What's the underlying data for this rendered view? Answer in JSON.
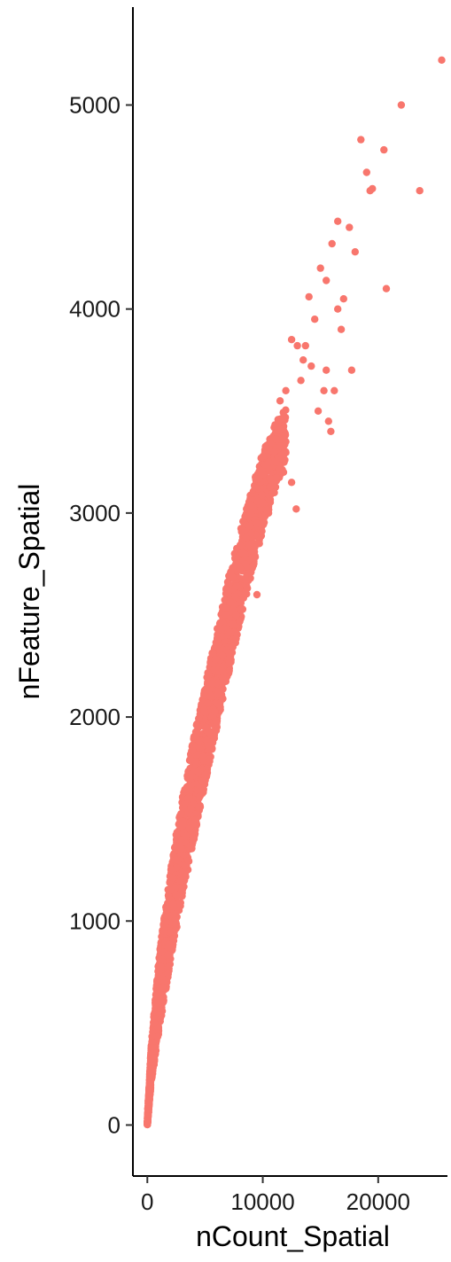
{
  "chart_data": {
    "type": "scatter",
    "title": "",
    "xlabel": "nCount_Spatial",
    "ylabel": "nFeature_Spatial",
    "xlim": [
      -1250,
      26000
    ],
    "ylim": [
      -250,
      5480
    ],
    "x_ticks": [
      0,
      10000,
      20000
    ],
    "x_tick_labels": [
      "0",
      "10000",
      "20000"
    ],
    "y_ticks": [
      0,
      1000,
      2000,
      3000,
      4000,
      5000
    ],
    "y_tick_labels": [
      "0",
      "1000",
      "2000",
      "3000",
      "4000",
      "5000"
    ],
    "grid": false,
    "legend": "none",
    "point_color": "#F8766D",
    "series": [
      {
        "x": [
          25500,
          22000,
          20500,
          18500,
          19500,
          19300,
          19000,
          23600,
          20700,
          16500,
          17500,
          18000,
          16000,
          16500,
          15500,
          17000,
          14000,
          15000,
          14500,
          16800,
          15500,
          17700,
          13500,
          13000,
          16200,
          14200,
          15300,
          13700,
          12500,
          14800,
          15700,
          12000,
          13300,
          11500,
          15900,
          12000,
          11000,
          10500,
          11800,
          12500,
          11000,
          10000,
          10500,
          9500,
          12900,
          9000,
          8500,
          9500,
          7700,
          6500,
          5500,
          4500,
          3500,
          2500,
          2000,
          1500,
          1000,
          800,
          600,
          400,
          250,
          150,
          80,
          40,
          20,
          10
        ],
        "y": [
          5220,
          5000,
          4780,
          4830,
          4590,
          4580,
          4670,
          4580,
          4100,
          4430,
          4400,
          4280,
          4320,
          4000,
          4140,
          4050,
          4060,
          4200,
          3950,
          3900,
          3700,
          3700,
          3750,
          3820,
          3600,
          3720,
          3600,
          3820,
          3850,
          3500,
          3450,
          3600,
          3650,
          3550,
          3400,
          3350,
          3300,
          3250,
          3200,
          3150,
          3100,
          3050,
          3000,
          2950,
          3020,
          2900,
          2750,
          2600,
          2500,
          2300,
          2100,
          1850,
          1600,
          1300,
          1150,
          950,
          750,
          600,
          500,
          380,
          250,
          180,
          120,
          80,
          40,
          20
        ]
      }
    ],
    "density_band": {
      "x": [
        0,
        300,
        1000,
        2000,
        3000,
        4000,
        5000,
        6000,
        7000,
        8000,
        9000,
        10000,
        11000,
        12000
      ],
      "y_low": [
        0,
        150,
        380,
        700,
        1000,
        1280,
        1570,
        1840,
        2100,
        2350,
        2600,
        2830,
        3040,
        3200
      ],
      "y_high": [
        10,
        400,
        900,
        1350,
        1700,
        2000,
        2260,
        2520,
        2780,
        3000,
        3200,
        3380,
        3500,
        3580
      ]
    }
  }
}
